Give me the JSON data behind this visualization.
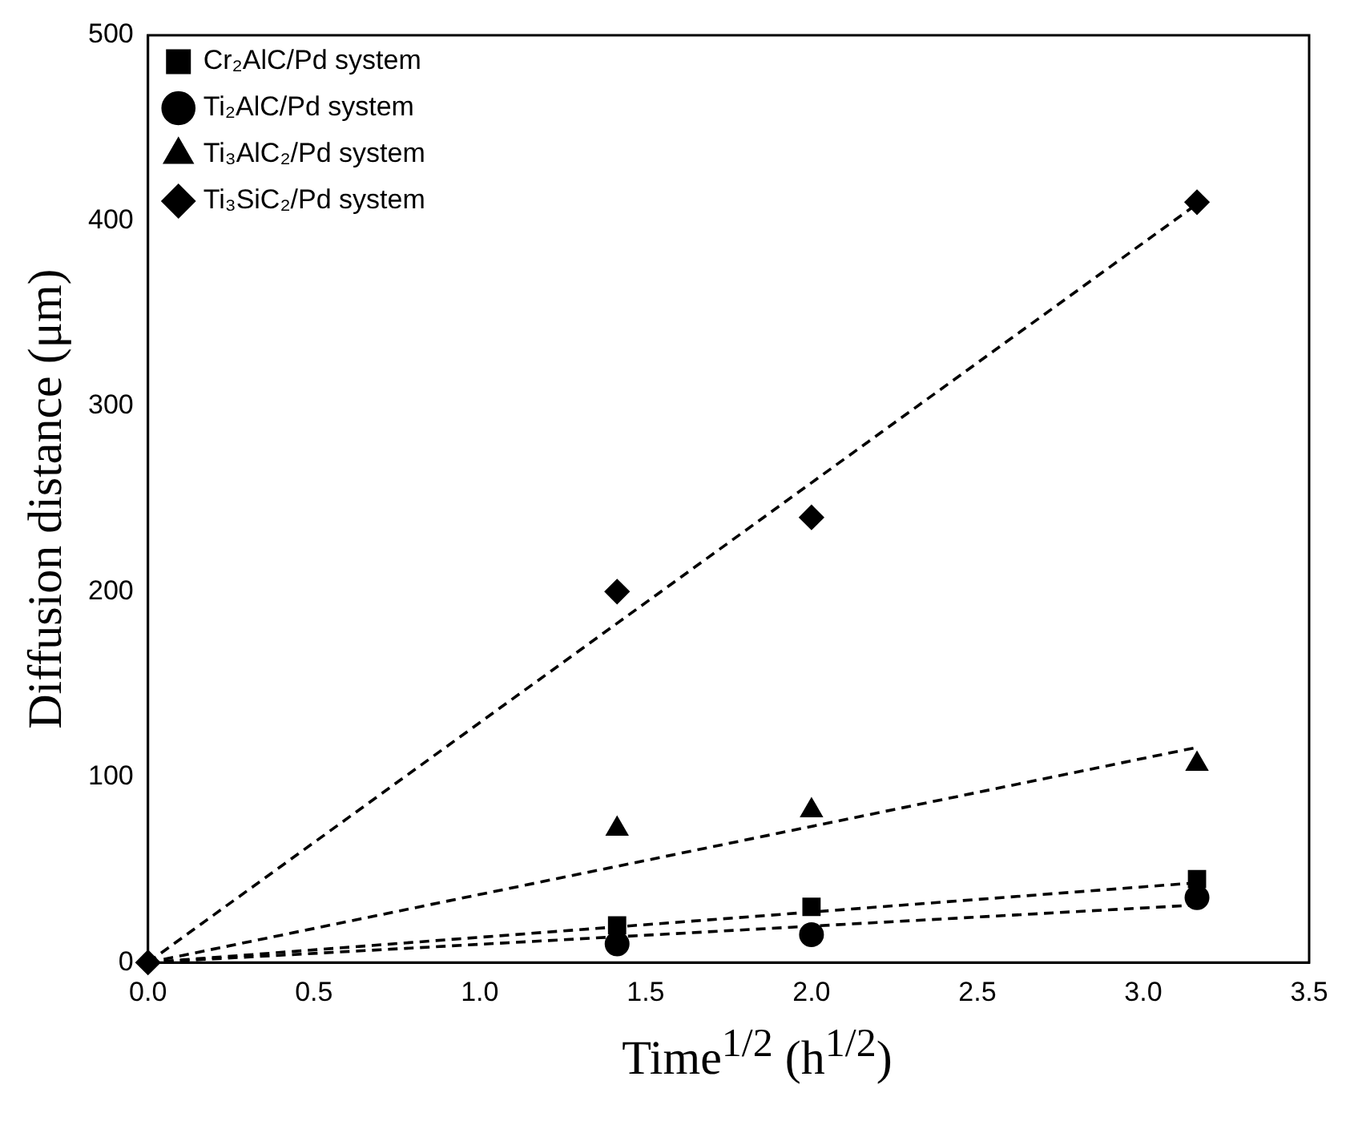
{
  "chart_data": {
    "type": "scatter",
    "xlabel": "Time$^{1/2}$ (h$^{1/2}$)",
    "ylabel": "Diffusion distance (μm)",
    "xlim": [
      0,
      3.5
    ],
    "xticks": [
      {
        "value": 0,
        "label": "0.0"
      },
      {
        "value": 0.5,
        "label": "0.5"
      },
      {
        "value": 1,
        "label": "1.0"
      },
      {
        "value": 1.5,
        "label": "1.5"
      },
      {
        "value": 2,
        "label": "2.0"
      },
      {
        "value": 2.5,
        "label": "2.5"
      },
      {
        "value": 3,
        "label": "3.0"
      },
      {
        "value": 3.5,
        "label": "3.5"
      }
    ],
    "ylim": [
      0,
      500
    ],
    "yticks": [
      0,
      100,
      200,
      300,
      400,
      500
    ],
    "grid": false,
    "legend": "top left",
    "series": [
      {
        "name": "Cr₂AlC/Pd system",
        "marker": "square",
        "color": "#000000",
        "x": [
          1.414,
          2,
          3.162
        ],
        "values": [
          20,
          30,
          45
        ]
      },
      {
        "name": "Ti₂AlC/Pd system",
        "marker": "circle",
        "color": "#000000",
        "x": [
          1.414,
          2,
          3.162
        ],
        "values": [
          10,
          15,
          35
        ]
      },
      {
        "name": "Ti₃AlC₂/Pd system",
        "marker": "triangle",
        "color": "#000000",
        "x": [
          1.414,
          2,
          3.162
        ],
        "values": [
          72,
          82,
          107
        ]
      },
      {
        "name": "Ti₃SiC₂/Pd system",
        "marker": "diamond",
        "color": "#000000",
        "x": [
          0,
          1.414,
          2,
          3.162
        ],
        "values": [
          0,
          200,
          240,
          410
        ]
      },
      {
        "type": "line",
        "line_style": "dashed",
        "marker": "none",
        "color": "#000000",
        "x": [
          0,
          3.162
        ],
        "values": [
          0,
          43
        ]
      },
      {
        "type": "line",
        "line_style": "dashed",
        "marker": "none",
        "color": "#000000",
        "x": [
          0,
          3.162
        ],
        "values": [
          0,
          31
        ]
      },
      {
        "type": "line",
        "line_style": "dashed",
        "marker": "none",
        "color": "#000000",
        "x": [
          0,
          3.162
        ],
        "values": [
          0,
          116
        ]
      },
      {
        "type": "line",
        "line_style": "dashed",
        "marker": "none",
        "color": "#000000",
        "x": [
          0,
          3.162
        ],
        "values": [
          0,
          409
        ]
      }
    ]
  }
}
